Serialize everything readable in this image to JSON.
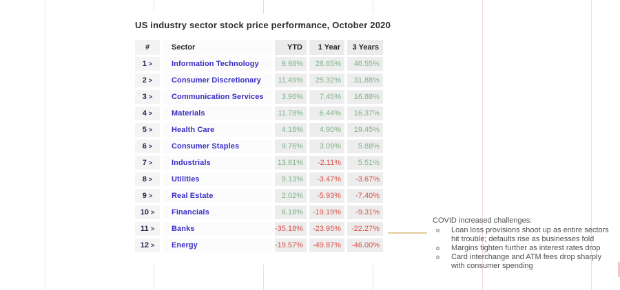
{
  "title": "US industry sector stock price performance, October 2020",
  "table": {
    "chevron": ">",
    "headers": {
      "num": "#",
      "sector": "Sector",
      "ytd": "YTD",
      "year1": "1 Year",
      "years3": "3 Years"
    },
    "rows": [
      {
        "num": "1",
        "sector": "Information Technology",
        "ytd": "9.98%",
        "year1": "28.65%",
        "years3": "46.55%"
      },
      {
        "num": "2",
        "sector": "Consumer Discretionary",
        "ytd": "11.49%",
        "year1": "25.32%",
        "years3": "31.88%"
      },
      {
        "num": "3",
        "sector": "Communication Services",
        "ytd": "3.96%",
        "year1": "7.45%",
        "years3": "16.88%"
      },
      {
        "num": "4",
        "sector": "Materials",
        "ytd": "11.78%",
        "year1": "6.44%",
        "years3": "16.37%"
      },
      {
        "num": "5",
        "sector": "Health Care",
        "ytd": "4.18%",
        "year1": "4.90%",
        "years3": "19.45%"
      },
      {
        "num": "6",
        "sector": "Consumer Staples",
        "ytd": "9.76%",
        "year1": "3.09%",
        "years3": "5.88%"
      },
      {
        "num": "7",
        "sector": "Industrials",
        "ytd": "13.81%",
        "year1": "-2.11%",
        "years3": "5.51%"
      },
      {
        "num": "8",
        "sector": "Utilities",
        "ytd": "9.13%",
        "year1": "-3.47%",
        "years3": "-3.67%"
      },
      {
        "num": "9",
        "sector": "Real Estate",
        "ytd": "2.02%",
        "year1": "-5.93%",
        "years3": "-7.40%"
      },
      {
        "num": "10",
        "sector": "Financials",
        "ytd": "6.18%",
        "year1": "-19.19%",
        "years3": "-9.31%"
      },
      {
        "num": "11",
        "sector": "Banks",
        "ytd": "-35.18%",
        "year1": "-23.95%",
        "years3": "-22.27%"
      },
      {
        "num": "12",
        "sector": "Energy",
        "ytd": "-19.57%",
        "year1": "-49.87%",
        "years3": "-46.00%"
      }
    ]
  },
  "note": {
    "heading": "COVID increased challenges:",
    "bullet_marker": "o",
    "bullets": [
      "Loan loss provisions shoot up as entire sectors hit trouble; defaults rise as businesses fold",
      "Margins tighten further as interest rates drop",
      "Card interchange and ATM fees drop sharply with consumer spending"
    ]
  },
  "colors": {
    "positive": "#7fb389",
    "negative": "#d8514c",
    "sector_link": "#3b2fc4",
    "row_number": "#2a2550",
    "note_text": "#4f4f4f",
    "connector": "#e6cba0"
  }
}
